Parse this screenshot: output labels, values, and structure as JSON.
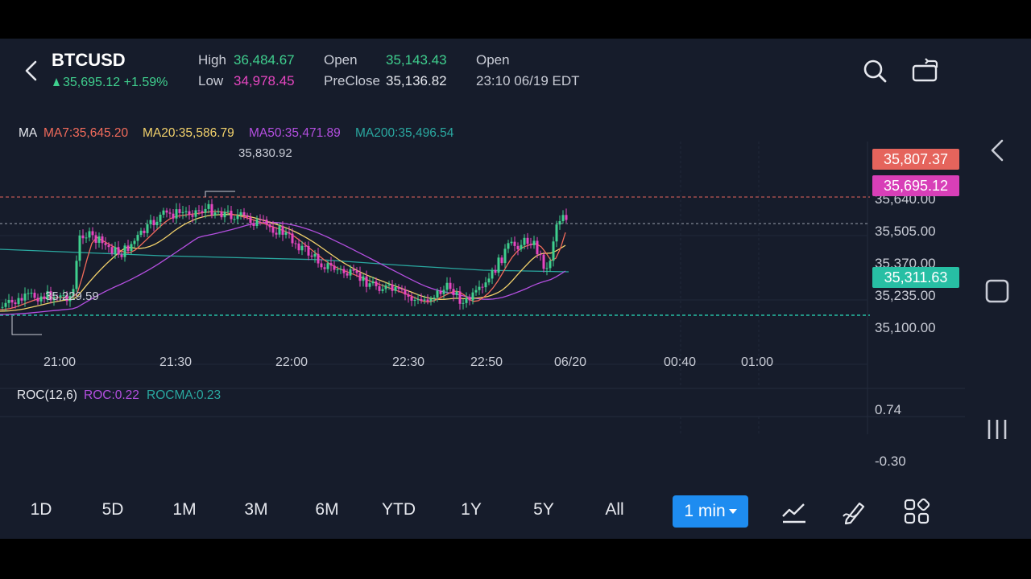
{
  "header": {
    "symbol": "BTCUSD",
    "last_price": "35,695.12",
    "change_pct": "+1.59%",
    "high_label": "High",
    "high_value": "36,484.67",
    "low_label": "Low",
    "low_value": "34,978.45",
    "open_label": "Open",
    "open_value": "35,143.43",
    "preclose_label": "PreClose",
    "preclose_value": "35,136.82",
    "status_label": "Open",
    "status_time": "23:10 06/19 EDT"
  },
  "ma_legend": {
    "title": "MA",
    "ma7": "MA7:35,645.20",
    "ma20": "MA20:35,586.79",
    "ma50": "MA50:35,471.89",
    "ma200": "MA200:35,496.54"
  },
  "price_axis": {
    "labels": [
      "35,640.00",
      "35,505.00",
      "35,370.00",
      "35,235.00",
      "35,100.00"
    ],
    "tag_high": "35,807.37",
    "tag_last": "35,695.12",
    "tag_low": "35,311.63",
    "max_annotation": "35,830.92",
    "min_annotation": "35,229.59"
  },
  "time_axis": [
    "21:00",
    "21:30",
    "22:00",
    "22:30",
    "22:50",
    "06/20",
    "00:40",
    "01:00"
  ],
  "roc_legend": {
    "title": "ROC(12,6)",
    "roc": "ROC:0.22",
    "rocma": "ROCMA:0.23",
    "axis_top": "0.74",
    "axis_bottom": "-0.30"
  },
  "periods": [
    "1D",
    "5D",
    "1M",
    "3M",
    "6M",
    "YTD",
    "1Y",
    "5Y",
    "All"
  ],
  "interval": "1 min",
  "tools": [
    "chart-type-icon",
    "draw-icon",
    "indicators-icon"
  ],
  "colors": {
    "background": "#161c2b",
    "up": "#3fcf8e",
    "down": "#e546c0",
    "ma7": "#f26b5b",
    "ma20": "#f2d16b",
    "ma50": "#b44fe0",
    "ma200": "#2aa8a0",
    "accent": "#1e8cf0"
  }
}
